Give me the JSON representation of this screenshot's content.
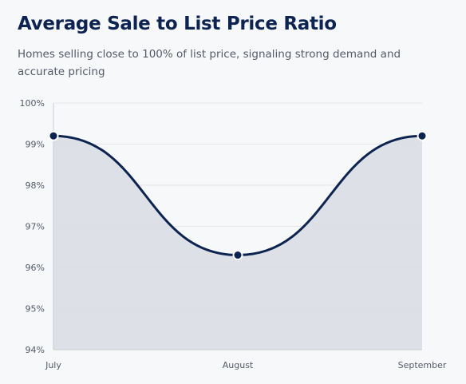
{
  "title": "Average Sale to List Price Ratio",
  "subtitle": "Homes selling close to 100% of list price, signaling strong demand and accurate pricing",
  "colors": {
    "line": "#0d2451",
    "area": "#d9dde4",
    "grid": "#e3e6ea",
    "axis": "#c9cdd4",
    "point_stroke": "#ffffff"
  },
  "chart_data": {
    "type": "area",
    "categories": [
      "July",
      "August",
      "September"
    ],
    "series": [
      {
        "values": [
          99.2,
          96.3,
          99.2
        ]
      }
    ],
    "ylim": [
      94,
      100
    ],
    "yticks": [
      94,
      95,
      96,
      97,
      98,
      99,
      100
    ],
    "ytick_labels": [
      "94%",
      "95%",
      "96%",
      "97%",
      "98%",
      "99%",
      "100%"
    ],
    "grid": true,
    "curve": "smooth"
  }
}
